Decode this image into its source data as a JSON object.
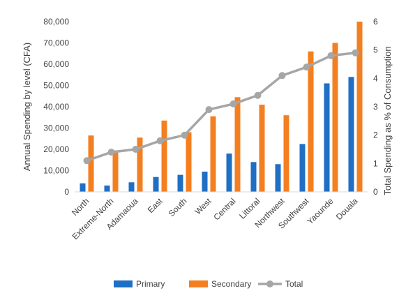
{
  "chart_data": {
    "type": "bar",
    "categories": [
      "North",
      "Extreme-North",
      "Adamaoua",
      "East",
      "South",
      "West",
      "Central",
      "Littoral",
      "Northwest",
      "Southwest",
      "Yaounde",
      "Douala"
    ],
    "series": [
      {
        "name": "Primary",
        "axis": "left",
        "kind": "bar",
        "color": "#1f6fc4",
        "values": [
          4000,
          3000,
          4500,
          7000,
          8000,
          9500,
          18000,
          14000,
          13000,
          22500,
          51000,
          54000
        ]
      },
      {
        "name": "Secondary",
        "axis": "left",
        "kind": "bar",
        "color": "#f47f20",
        "values": [
          26500,
          19500,
          25500,
          33500,
          28000,
          35500,
          44500,
          41000,
          36000,
          66000,
          70000,
          80000
        ]
      },
      {
        "name": "Total",
        "axis": "right",
        "kind": "line",
        "color": "#a6a6a6",
        "values": [
          1.1,
          1.4,
          1.5,
          1.8,
          2.0,
          2.9,
          3.1,
          3.4,
          4.1,
          4.4,
          4.8,
          4.9
        ]
      }
    ],
    "ylabel": "Annual Spending by level (CFA)",
    "y2label": "Total Spending as % of Consumption",
    "ylim": [
      0,
      80000
    ],
    "y2lim": [
      0,
      6
    ],
    "yticks": [
      "0",
      "10,000",
      "20,000",
      "30,000",
      "40,000",
      "50,000",
      "60,000",
      "70,000",
      "80,000"
    ],
    "y2ticks": [
      "0",
      "1",
      "2",
      "3",
      "4",
      "5",
      "6"
    ],
    "grid": false,
    "legend_position": "bottom"
  }
}
